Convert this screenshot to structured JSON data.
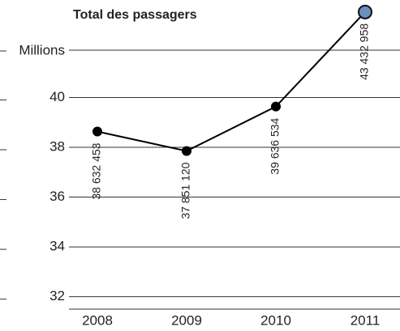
{
  "chart_data": {
    "type": "line",
    "title": "Total des passagers",
    "ylabel": "Millions",
    "categories": [
      "2008",
      "2009",
      "2010",
      "2011"
    ],
    "series": [
      {
        "name": "Total des passagers",
        "color": "#000000",
        "highlight_color": "#6b8fbf",
        "values": [
          38.632453,
          37.85112,
          39.636534,
          43.432958
        ],
        "value_labels": [
          "38 632 453",
          "37 851 120",
          "39 636 534",
          "43 432 958"
        ]
      }
    ],
    "ylim": [
      31.5,
      41.9
    ],
    "yticks": [
      32,
      34,
      36,
      38,
      40
    ],
    "grid": true
  }
}
